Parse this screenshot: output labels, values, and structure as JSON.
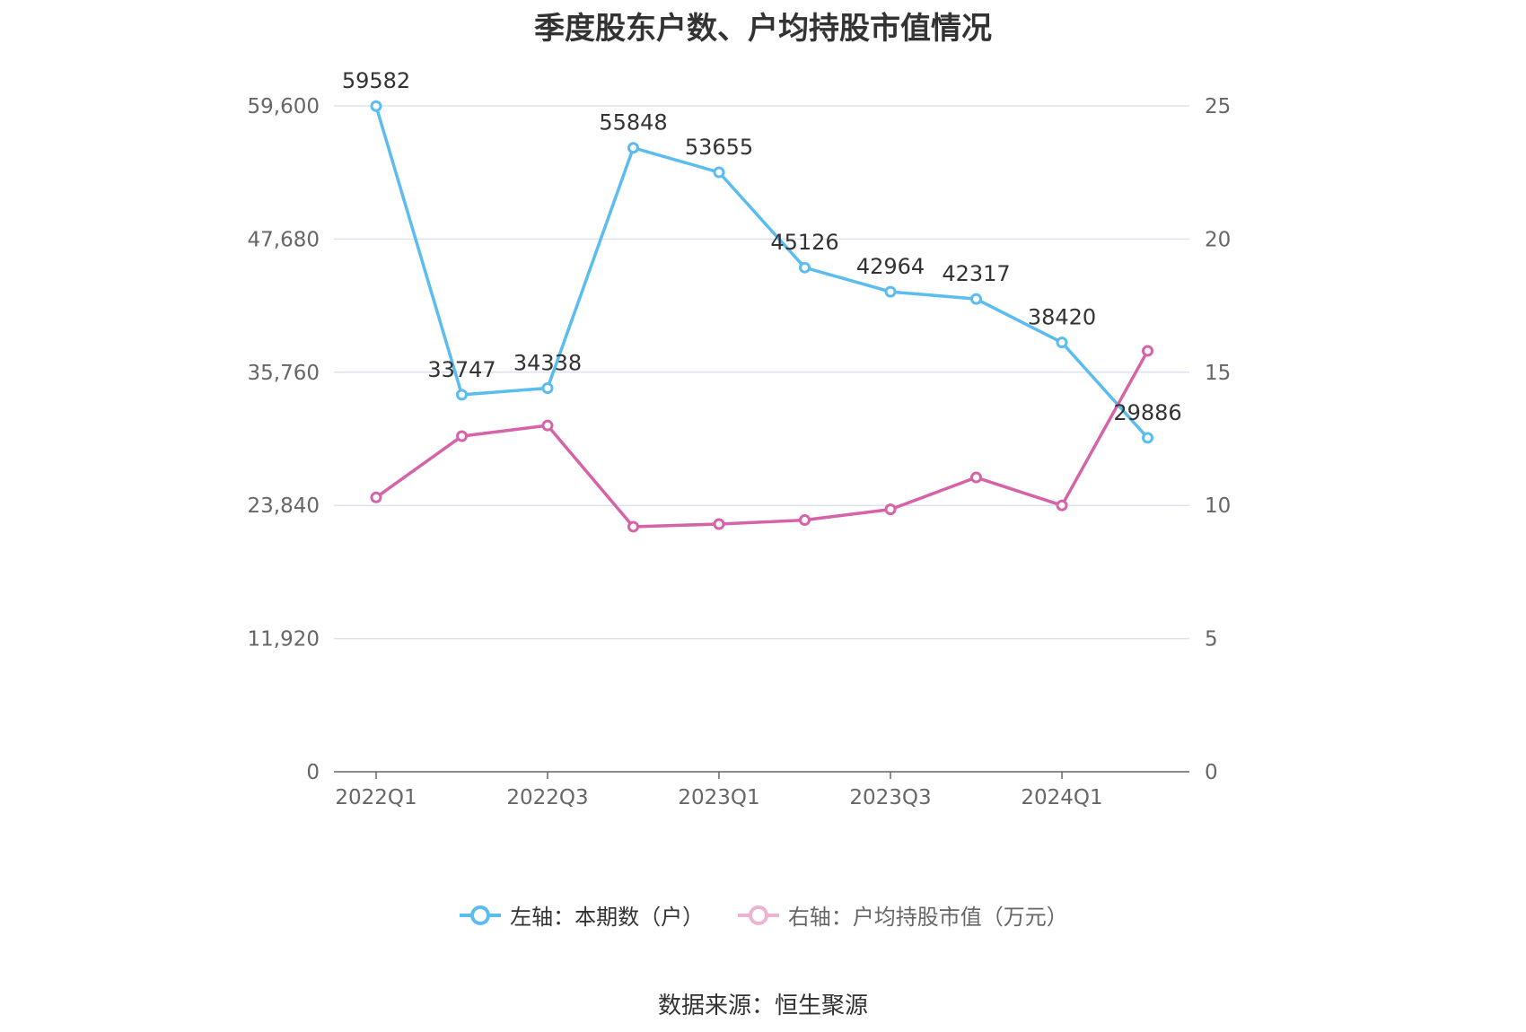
{
  "title": "季度股东户数、户均持股市值情况",
  "source": "数据来源：恒生聚源",
  "legend": {
    "left": "左轴：本期数（户）",
    "right": "右轴：户均持股市值（万元）"
  },
  "colors": {
    "left_series": "#5bbcf0",
    "right_series": "#d663a8",
    "grid": "#dde3ee",
    "axis": "#666666"
  },
  "chart_data": {
    "type": "line",
    "categories": [
      "2022Q1",
      "2022Q2",
      "2022Q3",
      "2022Q4",
      "2023Q1",
      "2023Q2",
      "2023Q3",
      "2023Q4",
      "2024Q1",
      "2024Q2"
    ],
    "x_tick_labels": [
      "2022Q1",
      "2022Q3",
      "2023Q1",
      "2023Q3",
      "2024Q1"
    ],
    "y_left": {
      "min": 0,
      "max": 59600,
      "ticks": [
        "0",
        "11,920",
        "23,840",
        "35,760",
        "47,680",
        "59,600"
      ]
    },
    "y_right": {
      "min": 0,
      "max": 25,
      "ticks": [
        "0",
        "5",
        "10",
        "15",
        "20",
        "25"
      ]
    },
    "grid": true,
    "legend_position": "bottom",
    "series": [
      {
        "name": "左轴：本期数（户）",
        "axis": "left",
        "values": [
          59582,
          33747,
          34338,
          55848,
          53655,
          45126,
          42964,
          42317,
          38420,
          29886
        ],
        "labels": [
          "59582",
          "33747",
          "34338",
          "55848",
          "53655",
          "45126",
          "42964",
          "42317",
          "38420",
          "29886"
        ]
      },
      {
        "name": "右轴：户均持股市值（万元）",
        "axis": "right",
        "values": [
          10.3,
          12.6,
          13.0,
          9.2,
          9.3,
          9.45,
          9.85,
          11.05,
          10.0,
          15.8
        ]
      }
    ]
  }
}
